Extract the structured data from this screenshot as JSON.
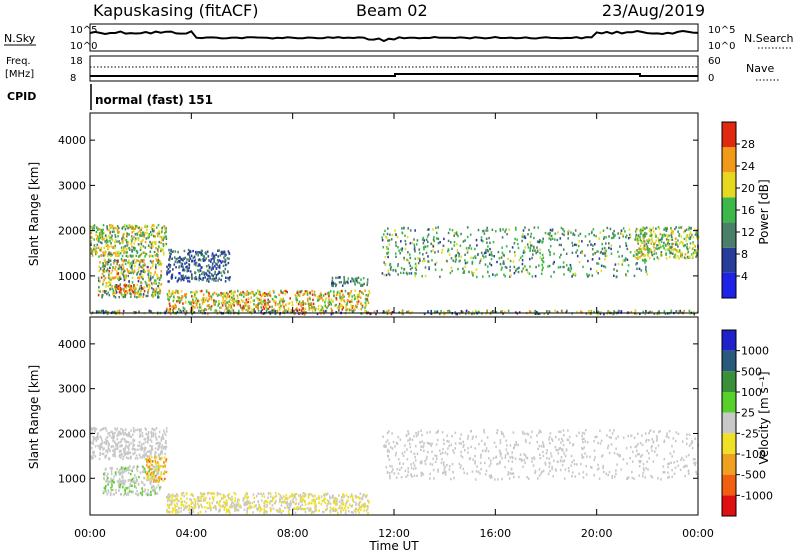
{
  "header": {
    "station": "Kapuskasing (fitACF)",
    "beam": "Beam 02",
    "date": "23/Aug/2019"
  },
  "top_panels": {
    "nsky_label": "N.Sky",
    "nsky_ticks": [
      "10^5",
      "10^0"
    ],
    "nsearch_label": "N.Search",
    "nsearch_ticks": [
      "10^5",
      "10^0"
    ],
    "freq_label": "Freq.",
    "freq_unit": "[MHz]",
    "freq_ticks": [
      "18",
      "8"
    ],
    "nave_label": "Nave",
    "nave_ticks": [
      "60",
      "0"
    ],
    "cpid_label": "CPID",
    "cpid_text": "normal (fast) 151"
  },
  "axes": {
    "ylabel": "Slant Range [km]",
    "xlabel": "Time UT",
    "y_ticks": [
      "1000",
      "2000",
      "3000",
      "4000"
    ],
    "x_ticks": [
      "00:00",
      "04:00",
      "08:00",
      "12:00",
      "16:00",
      "20:00",
      "00:00"
    ]
  },
  "power_colorbar": {
    "label": "Power [dB]",
    "ticks": [
      "4",
      "8",
      "12",
      "16",
      "20",
      "24",
      "28"
    ],
    "colors": [
      "#1e22e6",
      "#283c99",
      "#4a7f6a",
      "#3cb84a",
      "#e6d81e",
      "#f09a18",
      "#e02a10"
    ]
  },
  "velocity_colorbar": {
    "label": "Velocity [m s⁻¹]",
    "ticks": [
      "1000",
      "500",
      "100",
      "25",
      "-25",
      "-100",
      "-500",
      "-1000"
    ],
    "colors": [
      "#1e22c8",
      "#2a5a7a",
      "#3a8f3a",
      "#58d02a",
      "#c8c8c8",
      "#f0e028",
      "#f0a020",
      "#f06010",
      "#e01010"
    ]
  },
  "chart_data": [
    {
      "type": "heatmap",
      "ylabel": "Slant Range [km]",
      "xlabel": "Time UT",
      "zlabel": "Power [dB]",
      "x_range": [
        "00:00",
        "24:00"
      ],
      "ylim": [
        180,
        4600
      ],
      "zlim": [
        0,
        32
      ],
      "regions": [
        {
          "t": [
            0.0,
            3.0
          ],
          "r": [
            1450,
            2150
          ],
          "z": [
            10,
            26
          ]
        },
        {
          "t": [
            0.3,
            2.8
          ],
          "r": [
            550,
            1400
          ],
          "z": [
            8,
            28
          ]
        },
        {
          "t": [
            1.0,
            1.8
          ],
          "r": [
            650,
            820
          ],
          "z": [
            26,
            30
          ]
        },
        {
          "t": [
            3.0,
            5.5
          ],
          "r": [
            900,
            1600
          ],
          "z": [
            4,
            14
          ]
        },
        {
          "t": [
            3.0,
            11.0
          ],
          "r": [
            250,
            700
          ],
          "z": [
            14,
            30
          ]
        },
        {
          "t": [
            0.0,
            24.0
          ],
          "r": [
            180,
            260
          ],
          "z": [
            4,
            28
          ]
        },
        {
          "t": [
            9.5,
            11.0
          ],
          "r": [
            800,
            1000
          ],
          "z": [
            8,
            16
          ]
        },
        {
          "t": [
            11.5,
            22.0
          ],
          "r": [
            1000,
            2100
          ],
          "z": [
            8,
            20
          ]
        },
        {
          "t": [
            21.5,
            24.0
          ],
          "r": [
            1400,
            2100
          ],
          "z": [
            10,
            24
          ]
        }
      ]
    },
    {
      "type": "heatmap",
      "ylabel": "Slant Range [km]",
      "xlabel": "Time UT",
      "zlabel": "Velocity [m s⁻¹]",
      "x_range": [
        "00:00",
        "24:00"
      ],
      "ylim": [
        180,
        4600
      ],
      "zlim": [
        -1000,
        1000
      ],
      "regions": [
        {
          "t": [
            0.0,
            3.0
          ],
          "r": [
            1450,
            2150
          ],
          "z": [
            -25,
            25
          ]
        },
        {
          "t": [
            0.5,
            2.8
          ],
          "r": [
            650,
            1300
          ],
          "z": [
            25,
            150
          ]
        },
        {
          "t": [
            2.2,
            3.0
          ],
          "r": [
            950,
            1500
          ],
          "z": [
            -600,
            -150
          ]
        },
        {
          "t": [
            3.0,
            11.0
          ],
          "r": [
            250,
            700
          ],
          "z": [
            -300,
            100
          ]
        },
        {
          "t": [
            11.5,
            24.0
          ],
          "r": [
            1000,
            2100
          ],
          "z": [
            -25,
            25
          ]
        }
      ]
    }
  ]
}
